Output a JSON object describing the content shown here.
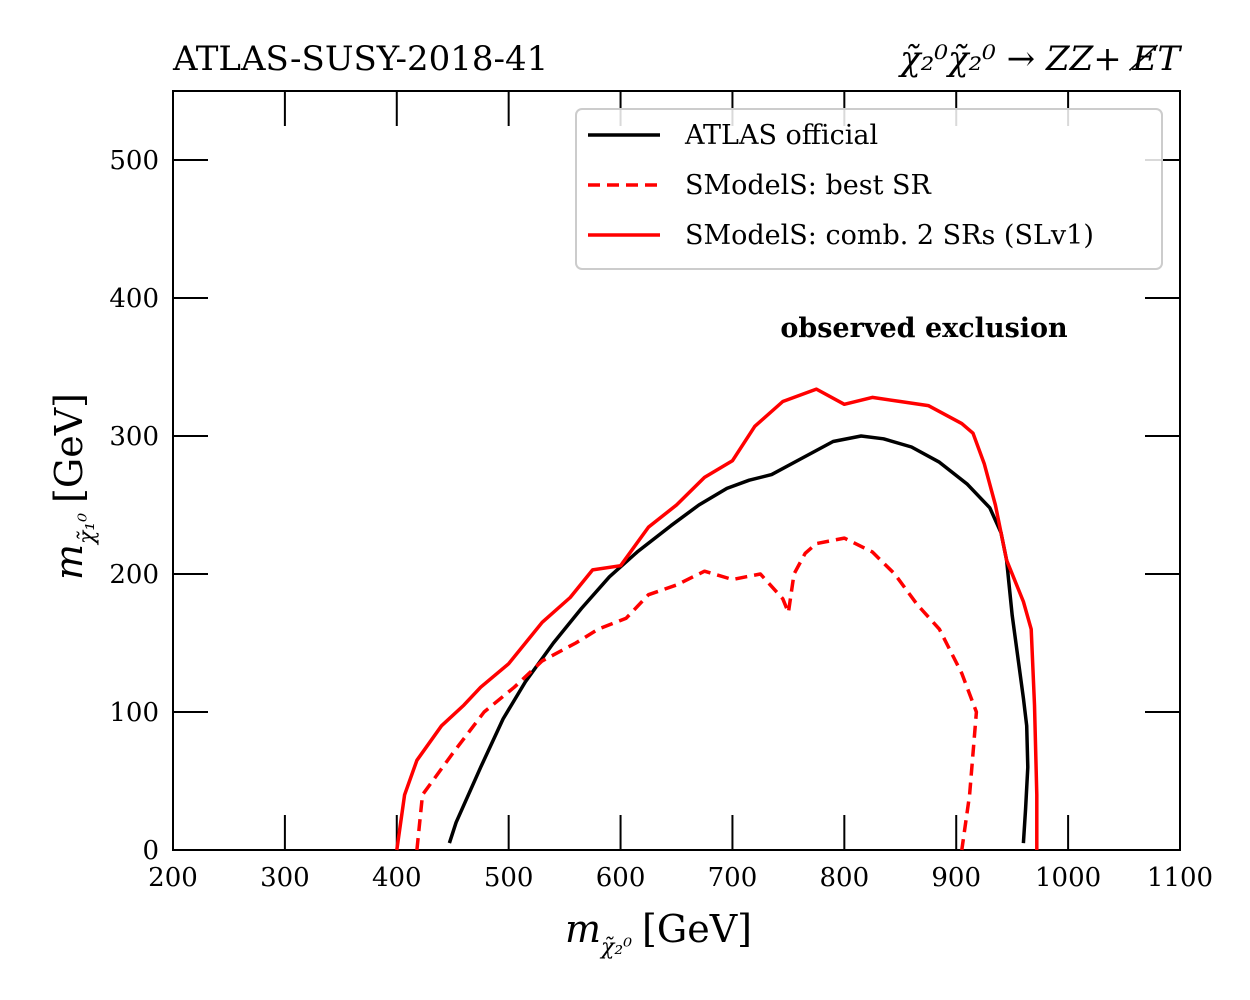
{
  "chart_data": {
    "type": "line",
    "title_left": "ATLAS-SUSY-2018-41",
    "title_right": "χ̃₂⁰χ̃₂⁰ → ZZ+ E̸T",
    "xlabel": "m",
    "xlabel_sub": "χ̃₂⁰",
    "xlabel_unit": "[GeV]",
    "ylabel": "m",
    "ylabel_sub": "χ̃₁⁰",
    "ylabel_unit": "[GeV]",
    "xlim": [
      200,
      1100
    ],
    "ylim": [
      0,
      550
    ],
    "x_ticks": [
      200,
      300,
      400,
      500,
      600,
      700,
      800,
      900,
      1000,
      1100
    ],
    "x_tick_labels": [
      "200",
      "300",
      "400",
      "500",
      "600",
      "700",
      "800",
      "900",
      "1000",
      "1100"
    ],
    "y_ticks": [
      0,
      100,
      200,
      300,
      400,
      500
    ],
    "y_tick_labels": [
      "0",
      "100",
      "200",
      "300",
      "400",
      "500"
    ],
    "annotation": "observed exclusion",
    "legend_position": "top-right",
    "series": [
      {
        "name": "ATLAS official",
        "color": "#000000",
        "style": "solid",
        "points": [
          [
            447,
            5
          ],
          [
            453,
            20
          ],
          [
            475,
            60
          ],
          [
            495,
            95
          ],
          [
            515,
            122
          ],
          [
            540,
            150
          ],
          [
            565,
            175
          ],
          [
            590,
            198
          ],
          [
            615,
            216
          ],
          [
            645,
            235
          ],
          [
            670,
            250
          ],
          [
            695,
            262
          ],
          [
            715,
            268
          ],
          [
            735,
            272
          ],
          [
            760,
            283
          ],
          [
            790,
            296
          ],
          [
            815,
            300
          ],
          [
            835,
            298
          ],
          [
            860,
            292
          ],
          [
            885,
            281
          ],
          [
            910,
            265
          ],
          [
            930,
            248
          ],
          [
            940,
            230
          ],
          [
            945,
            210
          ],
          [
            950,
            170
          ],
          [
            955,
            140
          ],
          [
            960,
            110
          ],
          [
            963,
            90
          ],
          [
            964,
            60
          ],
          [
            962,
            30
          ],
          [
            960,
            5
          ]
        ]
      },
      {
        "name": "SModelS: best SR",
        "color": "#ff0000",
        "style": "dashed",
        "points": [
          [
            418,
            0
          ],
          [
            423,
            40
          ],
          [
            450,
            70
          ],
          [
            478,
            100
          ],
          [
            505,
            118
          ],
          [
            530,
            137
          ],
          [
            560,
            150
          ],
          [
            580,
            160
          ],
          [
            605,
            168
          ],
          [
            625,
            185
          ],
          [
            650,
            192
          ],
          [
            675,
            202
          ],
          [
            700,
            196
          ],
          [
            725,
            200
          ],
          [
            745,
            182
          ],
          [
            750,
            172
          ],
          [
            755,
            200
          ],
          [
            765,
            215
          ],
          [
            775,
            222
          ],
          [
            800,
            226
          ],
          [
            825,
            216
          ],
          [
            845,
            200
          ],
          [
            865,
            178
          ],
          [
            885,
            160
          ],
          [
            905,
            128
          ],
          [
            918,
            100
          ],
          [
            912,
            40
          ],
          [
            905,
            0
          ]
        ]
      },
      {
        "name": "SModelS: comb. 2 SRs (SLv1)",
        "color": "#ff0000",
        "style": "solid",
        "points": [
          [
            400,
            0
          ],
          [
            407,
            40
          ],
          [
            418,
            65
          ],
          [
            440,
            90
          ],
          [
            460,
            105
          ],
          [
            475,
            118
          ],
          [
            500,
            135
          ],
          [
            530,
            165
          ],
          [
            555,
            183
          ],
          [
            575,
            203
          ],
          [
            600,
            206
          ],
          [
            625,
            234
          ],
          [
            650,
            250
          ],
          [
            675,
            270
          ],
          [
            700,
            282
          ],
          [
            720,
            307
          ],
          [
            745,
            325
          ],
          [
            775,
            334
          ],
          [
            800,
            323
          ],
          [
            825,
            328
          ],
          [
            850,
            325
          ],
          [
            875,
            322
          ],
          [
            905,
            309
          ],
          [
            915,
            302
          ],
          [
            925,
            280
          ],
          [
            935,
            250
          ],
          [
            945,
            210
          ],
          [
            960,
            180
          ],
          [
            967,
            160
          ],
          [
            970,
            105
          ],
          [
            972,
            40
          ],
          [
            972,
            0
          ]
        ]
      }
    ]
  }
}
